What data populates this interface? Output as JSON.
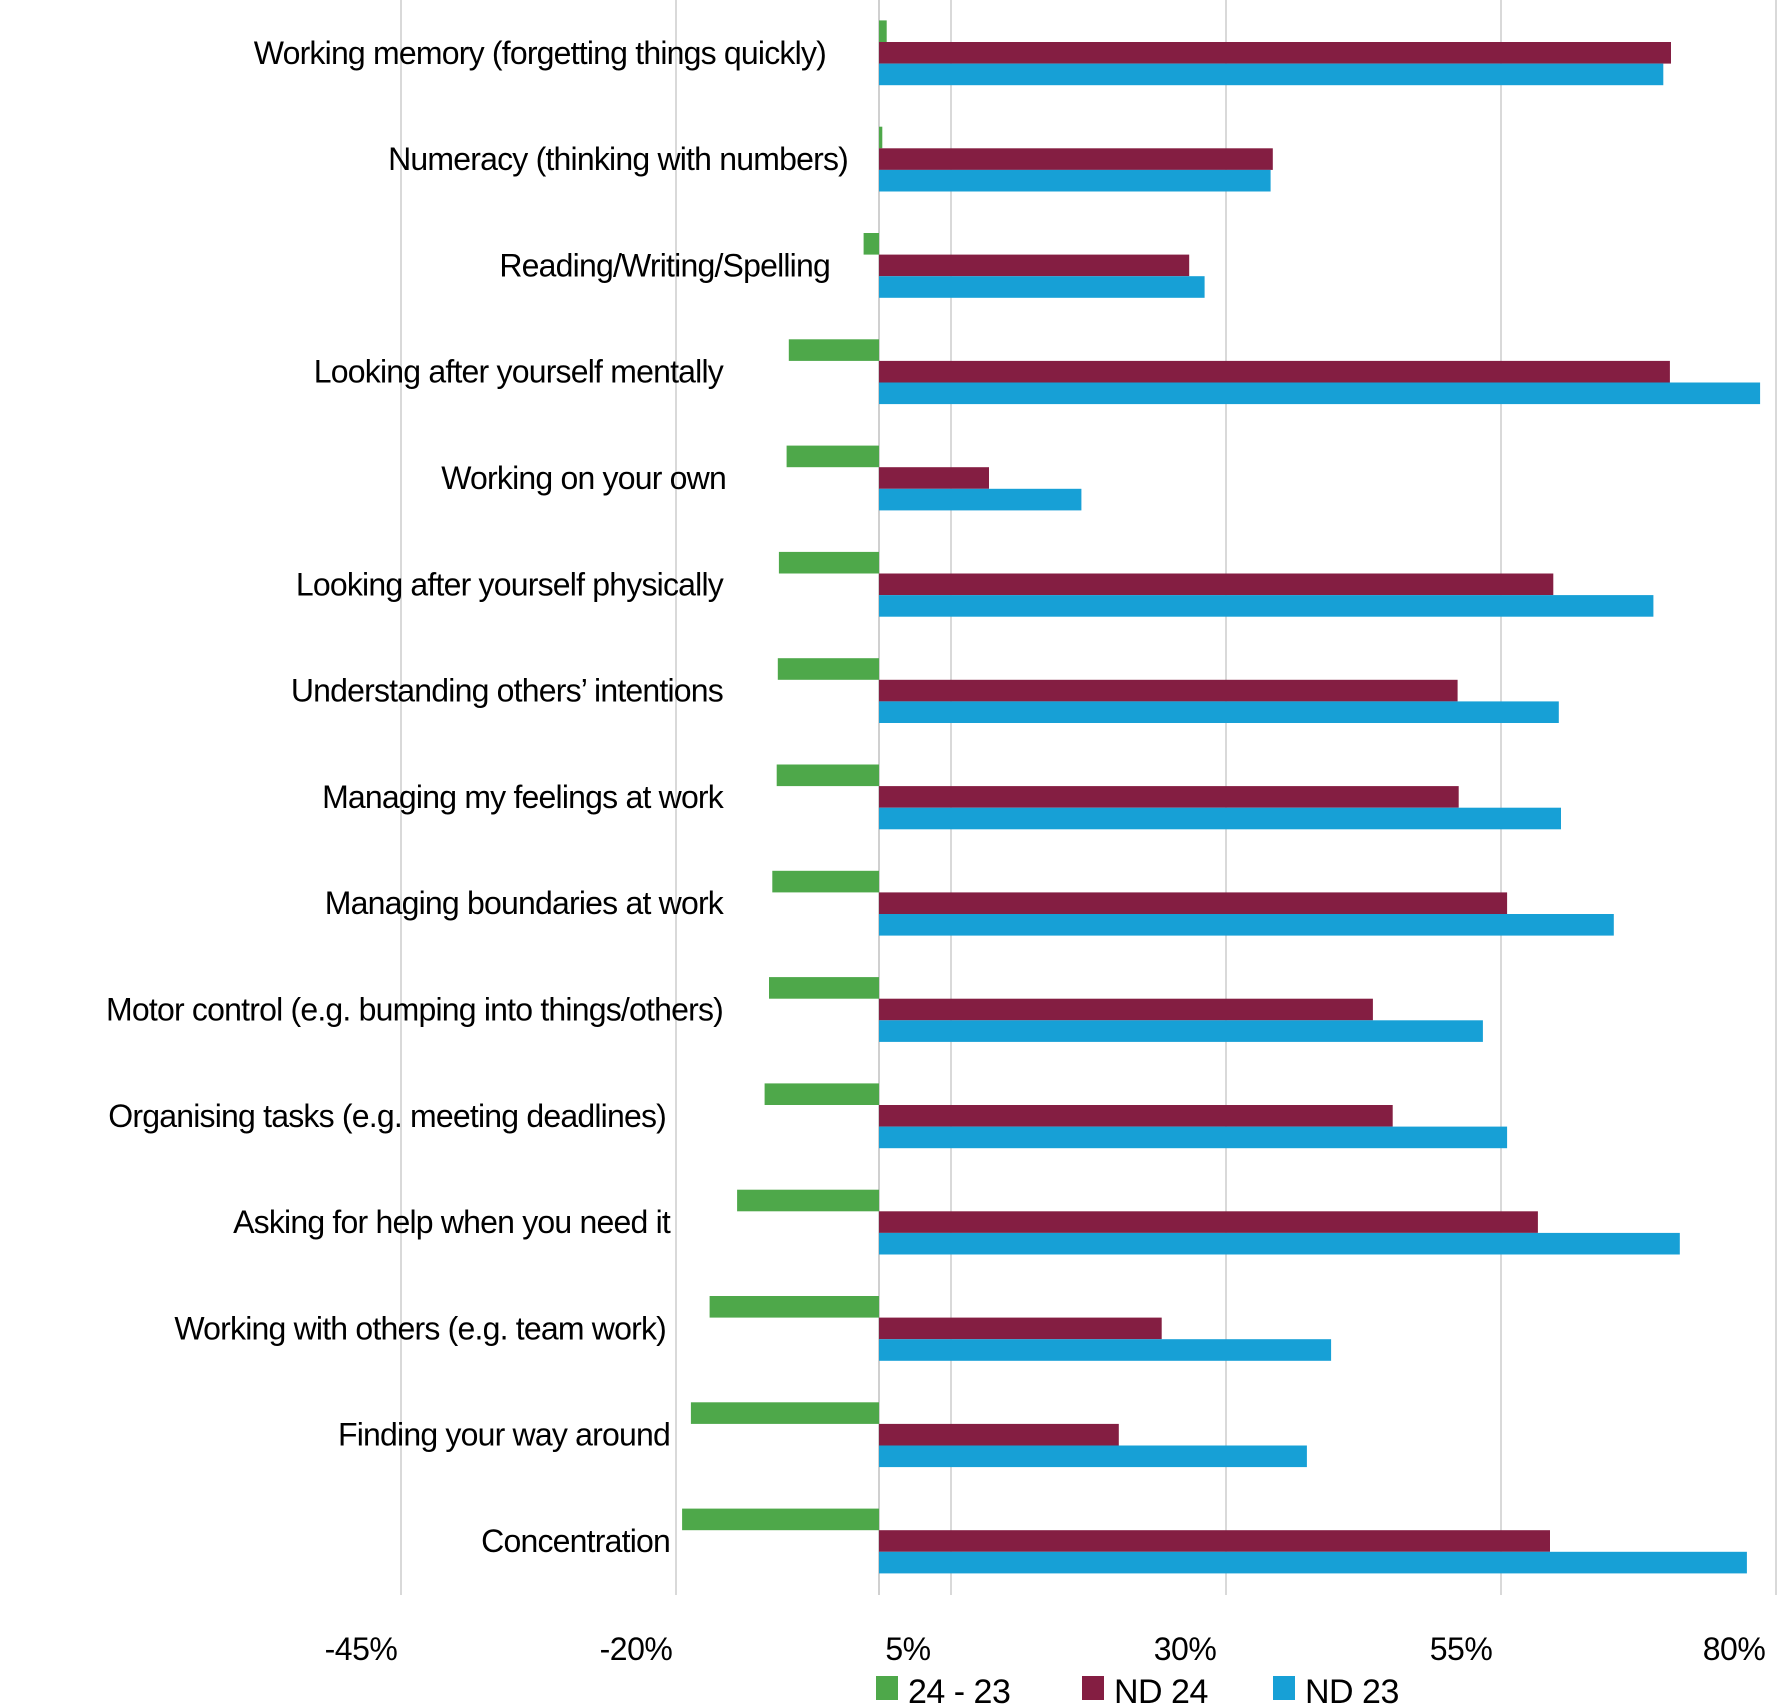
{
  "chart_data": {
    "type": "bar",
    "orientation": "horizontal",
    "title": "",
    "xlabel": "",
    "ylabel": "",
    "categories": [
      "Working memory (forgetting things quickly)",
      "Numeracy (thinking with numbers)",
      "Reading/Writing/Spelling",
      "Looking after yourself mentally",
      "Working on your own",
      "Looking after yourself physically",
      "Understanding others’ intentions",
      "Managing my feelings at work",
      "Managing boundaries at work",
      "Motor control (e.g. bumping into things/others)",
      "Organising tasks (e.g. meeting deadlines)",
      "Asking for help when you need it",
      "Working with others (e.g. team work)",
      "Finding your way around",
      "Concentration"
    ],
    "series": [
      {
        "name": "24 - 23",
        "color": "#4EA84A",
        "values": [
          0.7,
          0.3,
          -1.4,
          -8.2,
          -8.4,
          -9.1,
          -9.2,
          -9.3,
          -9.7,
          -10.0,
          -10.4,
          -12.9,
          -15.4,
          -17.1,
          -17.9
        ]
      },
      {
        "name": "ND 24",
        "color": "#841E42",
        "values": [
          72.0,
          35.8,
          28.2,
          71.9,
          10.0,
          61.3,
          52.6,
          52.7,
          57.1,
          44.9,
          46.7,
          59.9,
          25.7,
          21.8,
          61.0
        ]
      },
      {
        "name": "ND 23",
        "color": "#17A0D6",
        "values": [
          71.3,
          35.6,
          29.6,
          80.1,
          18.4,
          70.4,
          61.8,
          62.0,
          66.8,
          54.9,
          57.1,
          72.8,
          41.1,
          38.9,
          78.9
        ]
      }
    ],
    "xticks": [
      "-45%",
      "-20%",
      "5%",
      "30%",
      "55%",
      "80%"
    ],
    "xlim": [
      -45,
      80
    ],
    "unit": "%",
    "grid": "vertical",
    "legend": "bottom"
  }
}
